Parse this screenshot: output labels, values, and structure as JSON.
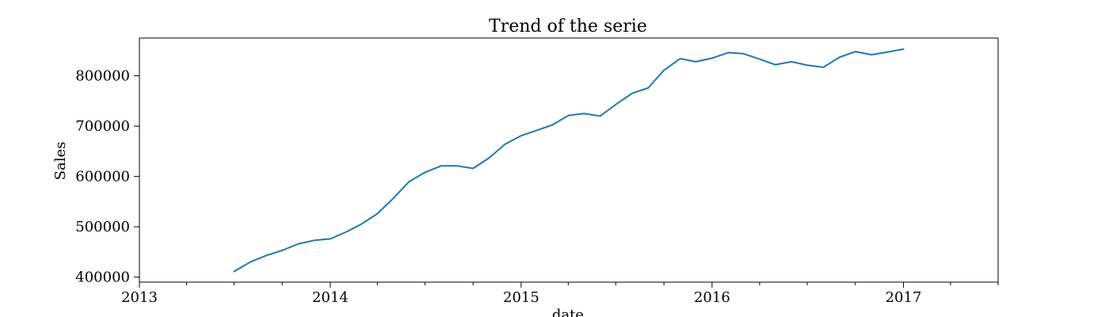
{
  "chart_data": {
    "type": "line",
    "title": "Trend of the serie",
    "xlabel": "date",
    "ylabel": "Sales",
    "xlim": [
      "2013-01-01",
      "2017-07-01"
    ],
    "ylim": [
      390000,
      875000
    ],
    "grid": false,
    "legend": "none",
    "x_ticks_major": [
      "2013-01-01",
      "2014-01-01",
      "2015-01-01",
      "2016-01-01",
      "2017-01-01"
    ],
    "x_tick_labels": [
      "2013",
      "2014",
      "2015",
      "2016",
      "2017"
    ],
    "x_ticks_minor": [
      "2013-04-01",
      "2013-07-01",
      "2013-10-01",
      "2014-04-01",
      "2014-07-01",
      "2014-10-01",
      "2015-04-01",
      "2015-07-01",
      "2015-10-01",
      "2016-04-01",
      "2016-07-01",
      "2016-10-01",
      "2017-04-01",
      "2017-07-01"
    ],
    "y_ticks": [
      400000,
      500000,
      600000,
      700000,
      800000
    ],
    "y_tick_labels": [
      "400000",
      "500000",
      "600000",
      "700000",
      "800000"
    ],
    "series": [
      {
        "color": "#1f77b4",
        "x": [
          "2013-07-01",
          "2013-08-01",
          "2013-09-01",
          "2013-10-01",
          "2013-11-01",
          "2013-12-01",
          "2014-01-01",
          "2014-02-01",
          "2014-03-01",
          "2014-04-01",
          "2014-05-01",
          "2014-06-01",
          "2014-07-01",
          "2014-08-01",
          "2014-09-01",
          "2014-10-01",
          "2014-11-01",
          "2014-12-01",
          "2015-01-01",
          "2015-02-01",
          "2015-03-01",
          "2015-04-01",
          "2015-05-01",
          "2015-06-01",
          "2015-07-01",
          "2015-08-01",
          "2015-09-01",
          "2015-10-01",
          "2015-11-01",
          "2015-12-01",
          "2016-01-01",
          "2016-02-01",
          "2016-03-01",
          "2016-04-01",
          "2016-05-01",
          "2016-06-01",
          "2016-07-01",
          "2016-08-01",
          "2016-09-01",
          "2016-10-01",
          "2016-11-01",
          "2016-12-01",
          "2017-01-01"
        ],
        "values": [
          411000,
          430000,
          443000,
          453000,
          466000,
          473000,
          476000,
          490000,
          505000,
          526000,
          556000,
          590000,
          608000,
          621000,
          621000,
          616000,
          637000,
          664000,
          681000,
          692000,
          702000,
          721000,
          725000,
          720000,
          743000,
          765000,
          776000,
          811000,
          834000,
          828000,
          835000,
          846000,
          844000,
          833000,
          822000,
          828000,
          821000,
          817000,
          837000,
          848000,
          842000,
          847000,
          853000
        ]
      }
    ]
  }
}
